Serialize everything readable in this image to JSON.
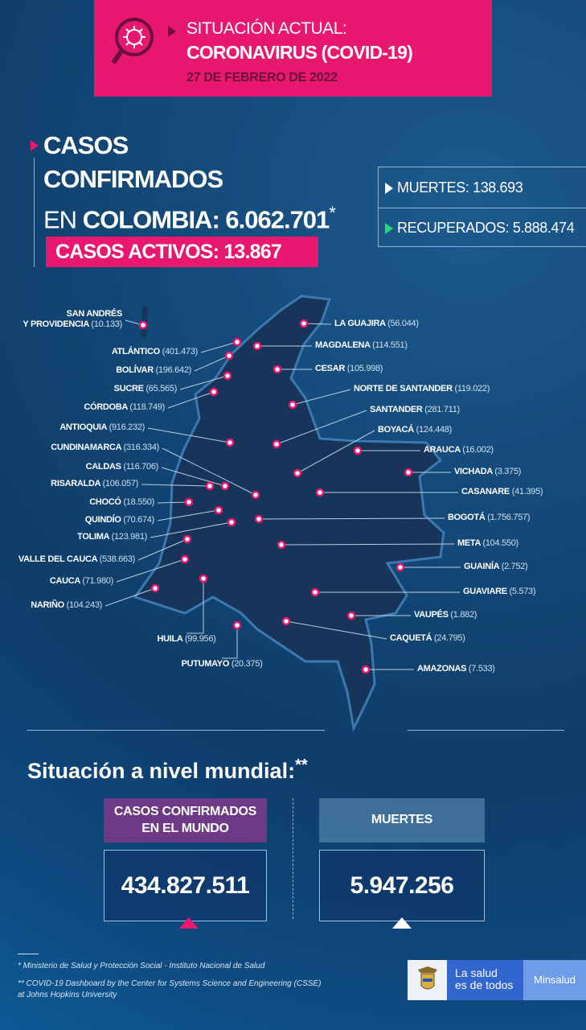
{
  "header": {
    "title_line1": "SITUACIÓN ACTUAL:",
    "title_line2": "CORONAVIRUS (COVID-19)",
    "date": "27 DE FEBRERO DE 2022",
    "icon": "virus-magnifier-icon"
  },
  "colombia": {
    "line1": "CASOS",
    "line2": "CONFIRMADOS",
    "line3_prefix": "EN ",
    "line3_bold": "COLOMBIA: 6.062.701",
    "asterisk": "*",
    "active_cases": "CASOS ACTIVOS: 13.867",
    "deaths": "MUERTES: 138.693",
    "recovered": "RECUPERADOS: 5.888.474"
  },
  "colors": {
    "pink": "#e8176f",
    "green": "#2bd67b",
    "purple": "#6e3a86",
    "background": "#0f3d6a"
  },
  "departments": [
    {
      "name": "SAN ANDRÉS",
      "name2": "Y PROVIDENCIA",
      "cases": "(10.133)"
    },
    {
      "name": "ATLÁNTICO",
      "cases": "(401.473)"
    },
    {
      "name": "BOLÍVAR",
      "cases": "(196.642)"
    },
    {
      "name": "SUCRE",
      "cases": "(65.565)"
    },
    {
      "name": "CÓRDOBA",
      "cases": "(118.749)"
    },
    {
      "name": "ANTIOQUIA",
      "cases": "(916.232)"
    },
    {
      "name": "CUNDINAMARCA",
      "cases": "(316.334)"
    },
    {
      "name": "CALDAS",
      "cases": "(116.706)"
    },
    {
      "name": "RISARALDA",
      "cases": "(106.057)"
    },
    {
      "name": "CHOCÓ",
      "cases": "(18.550)"
    },
    {
      "name": "QUINDÍO",
      "cases": "(70.674)"
    },
    {
      "name": "TOLIMA",
      "cases": "(123.981)"
    },
    {
      "name": "VALLE DEL CAUCA",
      "cases": "(538.663)"
    },
    {
      "name": "CAUCA",
      "cases": "(71.980)"
    },
    {
      "name": "NARIÑO",
      "cases": "(104.243)"
    },
    {
      "name": "HUILA",
      "cases": "(99.956)"
    },
    {
      "name": "PUTUMAYO",
      "cases": "(20.375)"
    },
    {
      "name": "LA GUAJIRA",
      "cases": "(56.044)"
    },
    {
      "name": "MAGDALENA",
      "cases": "(114.551)"
    },
    {
      "name": "CESAR",
      "cases": "(105.998)"
    },
    {
      "name": "NORTE DE SANTANDER",
      "cases": "(119.022)"
    },
    {
      "name": "SANTANDER",
      "cases": "(281.711)"
    },
    {
      "name": "BOYACÁ",
      "cases": "(124.448)"
    },
    {
      "name": "ARAUCA",
      "cases": "(16.002)"
    },
    {
      "name": "VICHADA",
      "cases": "(3.375)"
    },
    {
      "name": "CASANARE",
      "cases": "(41.395)"
    },
    {
      "name": "BOGOTÁ",
      "cases": "(1.756.757)"
    },
    {
      "name": "META",
      "cases": "(104.550)"
    },
    {
      "name": "GUAINÍA",
      "cases": "(2.752)"
    },
    {
      "name": "GUAVIARE",
      "cases": "(5.573)"
    },
    {
      "name": "VAUPÉS",
      "cases": "(1.882)"
    },
    {
      "name": "CAQUETÁ",
      "cases": "(24.795)"
    },
    {
      "name": "AMAZONAS",
      "cases": "(7.533)"
    }
  ],
  "world": {
    "title": "Situación a nivel mundial:",
    "title_mark": "**",
    "cases_label_1": "CASOS CONFIRMADOS",
    "cases_label_2": "EN EL MUNDO",
    "cases_value": "434.827.511",
    "deaths_label": "MUERTES",
    "deaths_value": "5.947.256"
  },
  "footer": {
    "note1": "* Ministerio de Salud y Protección Social - Instituto Nacional de Salud",
    "note2": "** COVID-19 Dashboard by the Center for Systems Science and Engineering (CSSE)",
    "note3": "at Johns Hopkins University"
  },
  "logo": {
    "slogan_1": "La salud",
    "slogan_2": "es de todos",
    "brand": "Minsalud"
  }
}
